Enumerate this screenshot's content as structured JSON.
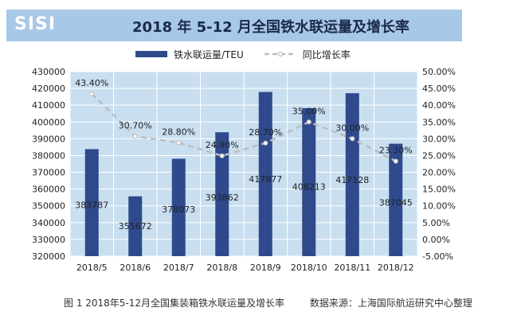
{
  "header": {
    "logo_text": "SISI",
    "title": "2018 年 5-12 月全国铁水联运量及增长率"
  },
  "caption": {
    "figure_text": "图 1 2018年5-12月全国集装箱铁水联运量及增长率",
    "source_text": "数据来源：上海国际航运研究中心整理"
  },
  "colors": {
    "bar": "#2e4a8c",
    "line": "#bdbdbd",
    "title_bar": "#a8c8e8",
    "plot_bg": "#c9dff0"
  },
  "chart_data": {
    "type": "bar",
    "categories": [
      "2018/5",
      "2018/6",
      "2018/7",
      "2018/8",
      "2018/9",
      "2018/10",
      "2018/11",
      "2018/12"
    ],
    "series": [
      {
        "name": "铁水联运量/TEU",
        "type": "bar",
        "axis": "left",
        "values": [
          383787,
          355672,
          378073,
          393862,
          417877,
          408213,
          417128,
          387045
        ],
        "labels": [
          "383787",
          "355672",
          "378073",
          "393862",
          "417877",
          "408213",
          "417128",
          "387045"
        ]
      },
      {
        "name": "同比增长率",
        "type": "line",
        "axis": "right",
        "values": [
          43.4,
          30.7,
          28.8,
          24.9,
          28.7,
          35.0,
          30.0,
          23.3
        ],
        "labels": [
          "43.40%",
          "30.70%",
          "28.80%",
          "24.90%",
          "28.70%",
          "35.00%",
          "30.00%",
          "23.30%"
        ]
      }
    ],
    "y_left": {
      "min": 320000,
      "max": 430000,
      "ticks": [
        "320000",
        "330000",
        "340000",
        "350000",
        "360000",
        "370000",
        "380000",
        "390000",
        "400000",
        "410000",
        "420000",
        "430000"
      ]
    },
    "y_right": {
      "min": -5,
      "max": 50,
      "ticks": [
        "-5.00%",
        "0.00%",
        "5.00%",
        "10.00%",
        "15.00%",
        "20.00%",
        "25.00%",
        "30.00%",
        "35.00%",
        "40.00%",
        "45.00%",
        "50.00%"
      ]
    },
    "legend_position": "top",
    "grid": true
  }
}
